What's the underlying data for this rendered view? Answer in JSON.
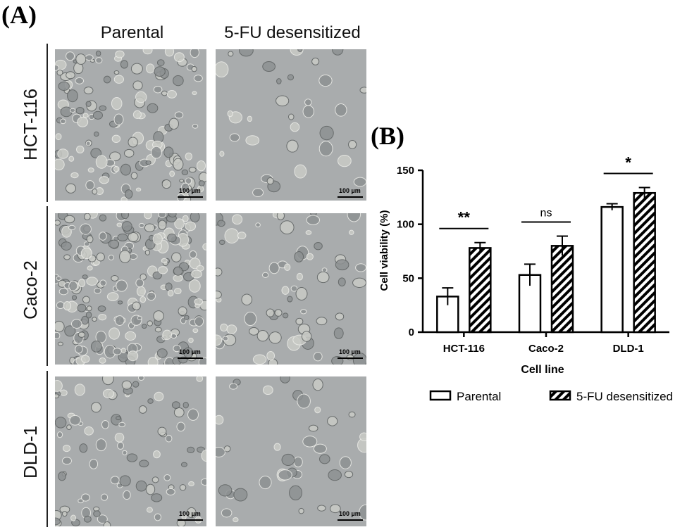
{
  "figure": {
    "panel_a_label": "(A)",
    "panel_b_label": "(B)",
    "columns": [
      "Parental",
      "5-FU desensitized"
    ],
    "rows": [
      "HCT-116",
      "Caco-2",
      "DLD-1"
    ],
    "scale_bar_label": "100 µm"
  },
  "chart_data": {
    "type": "bar",
    "categories": [
      "HCT-116",
      "Caco-2",
      "DLD-1"
    ],
    "series": [
      {
        "name": "Parental",
        "values": [
          33,
          53,
          116
        ],
        "errors": [
          8,
          10,
          3
        ],
        "fill": "open"
      },
      {
        "name": "5-FU desensitized",
        "values": [
          78,
          80,
          129
        ],
        "errors": [
          5,
          9,
          5
        ],
        "fill": "hatched"
      }
    ],
    "significance": [
      "**",
      "ns",
      "*"
    ],
    "xlabel": "Cell line",
    "ylabel": "Cell viability (%)",
    "ylim": [
      0,
      150
    ],
    "yticks": [
      "0",
      "50",
      "100",
      "150"
    ],
    "grid": false,
    "legend_position": "bottom"
  },
  "colors": {
    "bar_stroke": "#000000",
    "bar_fill": "#ffffff",
    "micro_bg": "#a9acad"
  }
}
